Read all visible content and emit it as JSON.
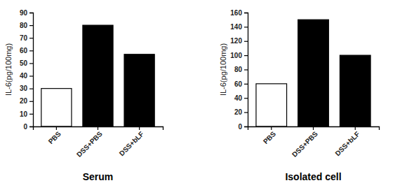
{
  "chart_data": [
    {
      "type": "bar",
      "title": "Serum",
      "y_label": "IL-6(pg/100mg)",
      "categories": [
        "PBS",
        "DSS+PBS",
        "DSS+bLF"
      ],
      "values": [
        30,
        80,
        57
      ],
      "colors": [
        "#ffffff",
        "#000000",
        "#000000"
      ],
      "ylim": [
        0,
        90
      ],
      "yticks": [
        0,
        10,
        20,
        30,
        40,
        50,
        60,
        70,
        80,
        90
      ]
    },
    {
      "type": "bar",
      "title": "Isolated cell",
      "y_label": "IL-6(pg/100mg)",
      "categories": [
        "PBS",
        "DSS+PBS",
        "DSS+bLF"
      ],
      "values": [
        60,
        150,
        100
      ],
      "colors": [
        "#ffffff",
        "#000000",
        "#000000"
      ],
      "ylim": [
        0,
        160
      ],
      "yticks": [
        0,
        20,
        40,
        60,
        80,
        100,
        120,
        140,
        160
      ]
    }
  ]
}
